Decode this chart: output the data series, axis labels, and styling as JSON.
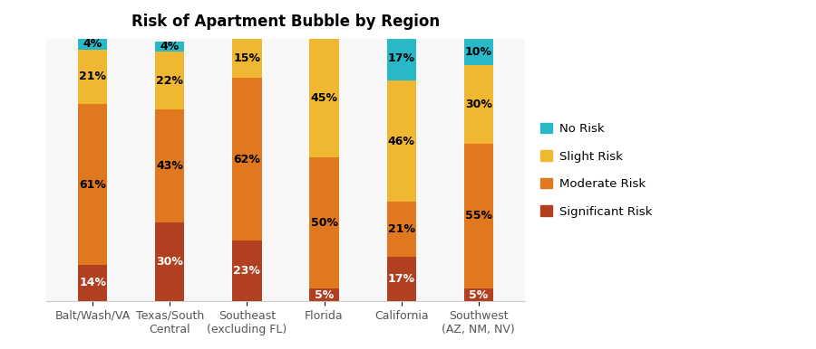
{
  "title": "Risk of Apartment Bubble by Region",
  "categories": [
    "Balt/Wash/VA",
    "Texas/South\nCentral",
    "Southeast\n(excluding FL)",
    "Florida",
    "California",
    "Southwest\n(AZ, NM, NV)"
  ],
  "significant_risk": [
    14,
    30,
    23,
    5,
    17,
    5
  ],
  "moderate_risk": [
    61,
    43,
    62,
    50,
    21,
    55
  ],
  "slight_risk": [
    21,
    22,
    15,
    45,
    46,
    30
  ],
  "no_risk": [
    4,
    4,
    0,
    0,
    17,
    10
  ],
  "colors": {
    "significant_risk": "#b04020",
    "moderate_risk": "#e07820",
    "slight_risk": "#f0b830",
    "no_risk": "#28b8c8"
  },
  "legend_labels": [
    "No Risk",
    "Slight Risk",
    "Moderate Risk",
    "Significant Risk"
  ],
  "ylim": [
    0,
    100
  ],
  "figsize": [
    9.0,
    3.86
  ],
  "dpi": 100
}
